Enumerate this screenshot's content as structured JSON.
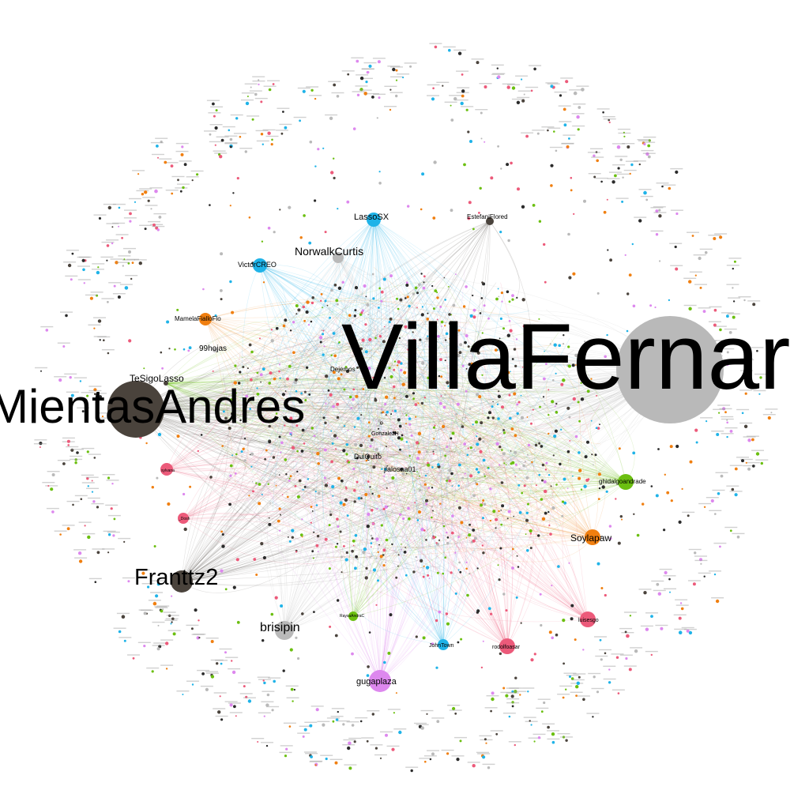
{
  "colors": {
    "gray": "#b9b9b9",
    "dark": "#4a433c",
    "pink": "#ec5a7a",
    "orange": "#f07f10",
    "green": "#6bbf10",
    "blue": "#1fb3e8",
    "violet": "#dd88ee",
    "black": "#2b2b2b",
    "edge": "#9a9a9a"
  },
  "hubs": [
    {
      "id": "villa",
      "label": "VillaFernar",
      "color": "gray",
      "size": 3
    },
    {
      "id": "mientas",
      "label": "MientasAndres",
      "color": "dark",
      "size": 3
    },
    {
      "id": "frantt",
      "label": "Franttz2",
      "color": "dark",
      "size": 2
    },
    {
      "id": "brisipin",
      "label": "brisipin",
      "color": "gray",
      "size": 2
    },
    {
      "id": "gugaplaza",
      "label": "gugaplaza",
      "color": "violet",
      "size": 2
    },
    {
      "id": "johntown",
      "label": "JohnTown",
      "color": "blue",
      "size": 1
    },
    {
      "id": "rodolfo",
      "label": "rodolfoasar",
      "color": "pink",
      "size": 1
    },
    {
      "id": "luisesgo",
      "label": "luisesgo",
      "color": "pink",
      "size": 1
    },
    {
      "id": "soylapaw",
      "label": "Soylapaw",
      "color": "orange",
      "size": 2
    },
    {
      "id": "ghidalgo",
      "label": "ghidalgoandrade",
      "color": "green",
      "size": 1
    },
    {
      "id": "estefani",
      "label": "EstefaniFlored",
      "color": "dark",
      "size": 1
    },
    {
      "id": "lassosx",
      "label": "LassoSX",
      "color": "blue",
      "size": 2
    },
    {
      "id": "norwalk",
      "label": "NorwalkCurtis",
      "color": "gray",
      "size": 2
    },
    {
      "id": "victor",
      "label": "VictorCREO",
      "color": "blue",
      "size": 1
    },
    {
      "id": "mamela",
      "label": "MamelaFialloFlo",
      "color": "orange",
      "size": 1
    },
    {
      "id": "hojas",
      "label": "99hojas",
      "color": "gray",
      "size": 1
    },
    {
      "id": "tesigo",
      "label": "TeSigoLasso",
      "color": "dark",
      "size": 1
    },
    {
      "id": "sylvana",
      "label": "sylvana",
      "color": "pink",
      "size": 1
    },
    {
      "id": "dosh",
      "label": "_Dosh",
      "color": "pink",
      "size": 1
    },
    {
      "id": "raysa",
      "label": "RaysaAndraC",
      "color": "green",
      "size": 1
    },
    {
      "id": "dejemos",
      "label": "Dejemos",
      "color": "black",
      "size": 0
    },
    {
      "id": "duiquito",
      "label": "DuiQuito",
      "color": "black",
      "size": 0
    },
    {
      "id": "jlalosaa",
      "label": "jlalosaa01",
      "color": "black",
      "size": 0
    },
    {
      "id": "gonzalez",
      "label": "GonzalezH",
      "color": "black",
      "size": 0
    }
  ]
}
